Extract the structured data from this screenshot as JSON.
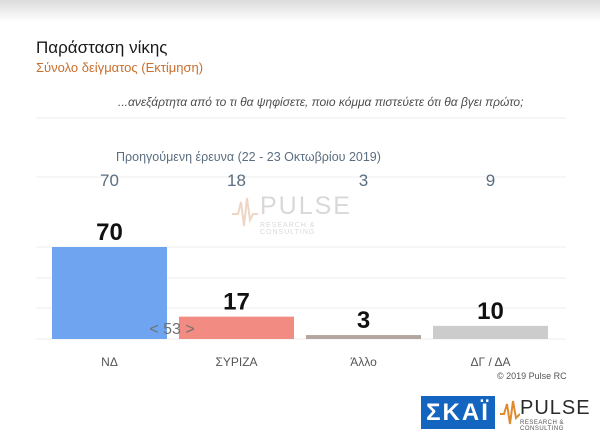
{
  "title": "Παράσταση νίκης",
  "subtitle": "Σύνολο δείγματος   (Εκτίμηση)",
  "question": "...ανεξάρτητα από το τι θα ψηφίσετε, ποιο κόμμα πιστεύετε ότι θα βγει πρώτο;",
  "watermark": {
    "brand": "PULSE",
    "tagline": "RESEARCH & CONSULTING"
  },
  "copyright": "© 2019 Pulse RC",
  "logos": {
    "skai": "ΣΚΑΪ",
    "pulse": "PULSE",
    "pulse_tagline": "RESEARCH & CONSULTING"
  },
  "colors": {
    "nd": "#6fa4f0",
    "syriza": "#f28b82",
    "allo": "#b3a5a0",
    "dg": "#cccccc",
    "accent": "#c8702e"
  },
  "chart_data": {
    "type": "bar",
    "categories": [
      "ΝΔ",
      "ΣΥΡΙΖΑ",
      "Άλλο",
      "ΔΓ / ΔΑ"
    ],
    "values": [
      70,
      17,
      3,
      10
    ],
    "previous_label": "Προηγούμενη έρευνα  (22 - 23  Οκτωβρίου  2019)",
    "previous_values": [
      "70",
      "18",
      "3",
      "9"
    ],
    "difference_annotation": "< 53 >",
    "ylim": [
      0,
      70
    ]
  }
}
